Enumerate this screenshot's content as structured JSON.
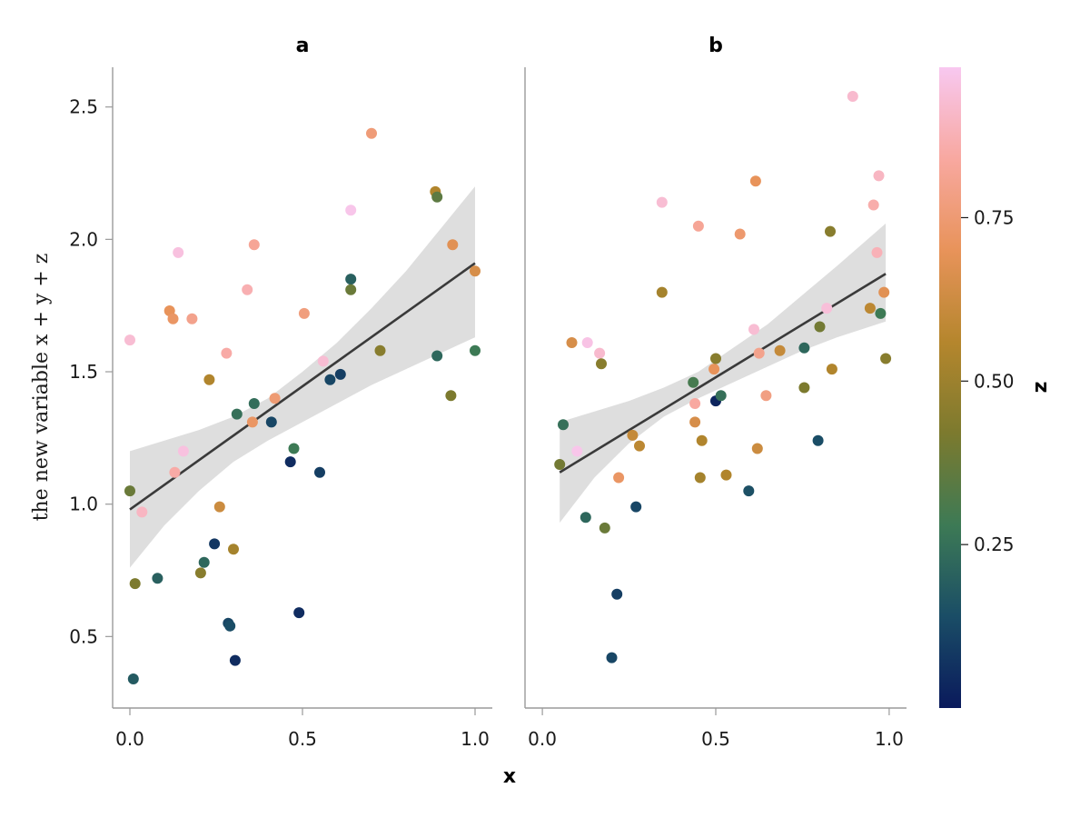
{
  "chart_data": {
    "type": "scatter",
    "ylabel": "the new variable x + y + z",
    "xlabel": "x",
    "ylim": [
      0.23,
      2.65
    ],
    "yticks": [
      "0.5",
      "1.0",
      "1.5",
      "2.0",
      "2.5"
    ],
    "xticks": [
      "0.0",
      "0.5",
      "1.0"
    ],
    "colorbar": {
      "label": "z",
      "range": [
        0.0,
        0.98
      ],
      "ticks": [
        "0.25",
        "0.50",
        "0.75"
      ],
      "colormap": [
        "#0a1a5c",
        "#1a4d66",
        "#3d7a55",
        "#7c7a2e",
        "#b5862d",
        "#e8935a",
        "#f8a8a0",
        "#f8c8f0"
      ]
    },
    "fit_color": "#3a3a3a",
    "band_color": "#dedede",
    "panels": [
      {
        "title": "a",
        "xlim": [
          -0.05,
          1.05
        ],
        "fit": {
          "x": [
            0.0,
            1.0
          ],
          "y": [
            0.98,
            1.91
          ]
        },
        "band": {
          "x": [
            0.0,
            0.1,
            0.2,
            0.3,
            0.4,
            0.5,
            0.6,
            0.7,
            0.8,
            0.9,
            1.0
          ],
          "lo": [
            0.76,
            0.92,
            1.05,
            1.16,
            1.24,
            1.31,
            1.38,
            1.45,
            1.51,
            1.57,
            1.63
          ],
          "hi": [
            1.2,
            1.24,
            1.28,
            1.33,
            1.4,
            1.5,
            1.61,
            1.74,
            1.88,
            2.04,
            2.2
          ]
        },
        "points": [
          [
            0.0,
            1.62,
            0.93
          ],
          [
            0.0,
            1.05,
            0.38
          ],
          [
            0.01,
            0.34,
            0.18
          ],
          [
            0.015,
            0.7,
            0.42
          ],
          [
            0.035,
            0.97,
            0.9
          ],
          [
            0.08,
            0.72,
            0.2
          ],
          [
            0.115,
            1.73,
            0.7
          ],
          [
            0.125,
            1.7,
            0.72
          ],
          [
            0.13,
            1.12,
            0.85
          ],
          [
            0.14,
            1.95,
            0.95
          ],
          [
            0.155,
            1.2,
            0.95
          ],
          [
            0.18,
            1.7,
            0.8
          ],
          [
            0.205,
            0.74,
            0.45
          ],
          [
            0.215,
            0.78,
            0.22
          ],
          [
            0.23,
            1.47,
            0.55
          ],
          [
            0.245,
            0.85,
            0.08
          ],
          [
            0.26,
            0.99,
            0.62
          ],
          [
            0.28,
            1.57,
            0.85
          ],
          [
            0.285,
            0.55,
            0.12
          ],
          [
            0.29,
            0.54,
            0.14
          ],
          [
            0.3,
            0.83,
            0.52
          ],
          [
            0.305,
            0.41,
            0.05
          ],
          [
            0.31,
            1.34,
            0.25
          ],
          [
            0.34,
            1.81,
            0.87
          ],
          [
            0.355,
            1.31,
            0.72
          ],
          [
            0.36,
            1.98,
            0.82
          ],
          [
            0.36,
            1.38,
            0.24
          ],
          [
            0.41,
            1.31,
            0.12
          ],
          [
            0.42,
            1.4,
            0.75
          ],
          [
            0.465,
            1.16,
            0.05
          ],
          [
            0.475,
            1.21,
            0.28
          ],
          [
            0.49,
            0.59,
            0.05
          ],
          [
            0.505,
            1.72,
            0.77
          ],
          [
            0.55,
            1.12,
            0.1
          ],
          [
            0.56,
            1.54,
            0.93
          ],
          [
            0.58,
            1.47,
            0.12
          ],
          [
            0.61,
            1.49,
            0.1
          ],
          [
            0.64,
            1.85,
            0.2
          ],
          [
            0.64,
            2.11,
            0.97
          ],
          [
            0.64,
            1.81,
            0.38
          ],
          [
            0.7,
            2.4,
            0.76
          ],
          [
            0.725,
            1.58,
            0.45
          ],
          [
            0.885,
            2.18,
            0.55
          ],
          [
            0.89,
            2.16,
            0.35
          ],
          [
            0.89,
            1.56,
            0.22
          ],
          [
            0.93,
            1.41,
            0.42
          ],
          [
            0.935,
            1.98,
            0.68
          ],
          [
            1.0,
            1.88,
            0.65
          ],
          [
            1.0,
            1.58,
            0.28
          ]
        ]
      },
      {
        "title": "b",
        "xlim": [
          -0.05,
          1.05
        ],
        "fit": {
          "x": [
            0.05,
            0.99
          ],
          "y": [
            1.12,
            1.87
          ]
        },
        "band": {
          "x": [
            0.05,
            0.15,
            0.25,
            0.35,
            0.45,
            0.55,
            0.65,
            0.75,
            0.85,
            0.99
          ],
          "lo": [
            0.93,
            1.1,
            1.23,
            1.33,
            1.4,
            1.46,
            1.52,
            1.58,
            1.63,
            1.69
          ],
          "hi": [
            1.31,
            1.35,
            1.39,
            1.44,
            1.5,
            1.59,
            1.68,
            1.79,
            1.9,
            2.06
          ]
        },
        "points": [
          [
            0.05,
            1.15,
            0.4
          ],
          [
            0.06,
            1.3,
            0.25
          ],
          [
            0.085,
            1.61,
            0.65
          ],
          [
            0.1,
            1.2,
            0.97
          ],
          [
            0.125,
            0.95,
            0.22
          ],
          [
            0.13,
            1.61,
            0.96
          ],
          [
            0.165,
            1.57,
            0.92
          ],
          [
            0.17,
            1.53,
            0.45
          ],
          [
            0.18,
            0.91,
            0.38
          ],
          [
            0.2,
            0.42,
            0.12
          ],
          [
            0.215,
            0.66,
            0.1
          ],
          [
            0.22,
            1.1,
            0.72
          ],
          [
            0.26,
            1.26,
            0.6
          ],
          [
            0.27,
            0.99,
            0.12
          ],
          [
            0.28,
            1.22,
            0.58
          ],
          [
            0.345,
            1.8,
            0.52
          ],
          [
            0.345,
            2.14,
            0.93
          ],
          [
            0.435,
            1.46,
            0.3
          ],
          [
            0.44,
            1.31,
            0.65
          ],
          [
            0.44,
            1.38,
            0.84
          ],
          [
            0.45,
            2.05,
            0.82
          ],
          [
            0.455,
            1.1,
            0.52
          ],
          [
            0.46,
            1.24,
            0.55
          ],
          [
            0.495,
            1.51,
            0.7
          ],
          [
            0.5,
            1.39,
            0.03
          ],
          [
            0.5,
            1.55,
            0.45
          ],
          [
            0.515,
            1.41,
            0.25
          ],
          [
            0.53,
            1.11,
            0.55
          ],
          [
            0.57,
            2.02,
            0.74
          ],
          [
            0.595,
            1.05,
            0.15
          ],
          [
            0.61,
            1.66,
            0.93
          ],
          [
            0.615,
            2.22,
            0.7
          ],
          [
            0.62,
            1.21,
            0.62
          ],
          [
            0.625,
            1.57,
            0.8
          ],
          [
            0.645,
            1.41,
            0.78
          ],
          [
            0.685,
            1.58,
            0.6
          ],
          [
            0.755,
            1.59,
            0.22
          ],
          [
            0.755,
            1.44,
            0.42
          ],
          [
            0.795,
            1.24,
            0.14
          ],
          [
            0.8,
            1.67,
            0.4
          ],
          [
            0.82,
            1.74,
            0.94
          ],
          [
            0.83,
            2.03,
            0.45
          ],
          [
            0.835,
            1.51,
            0.55
          ],
          [
            0.895,
            2.54,
            0.92
          ],
          [
            0.945,
            1.74,
            0.58
          ],
          [
            0.955,
            2.13,
            0.86
          ],
          [
            0.965,
            1.95,
            0.88
          ],
          [
            0.97,
            2.24,
            0.9
          ],
          [
            0.975,
            1.72,
            0.28
          ],
          [
            0.985,
            1.8,
            0.68
          ],
          [
            0.99,
            1.55,
            0.45
          ]
        ]
      }
    ]
  }
}
